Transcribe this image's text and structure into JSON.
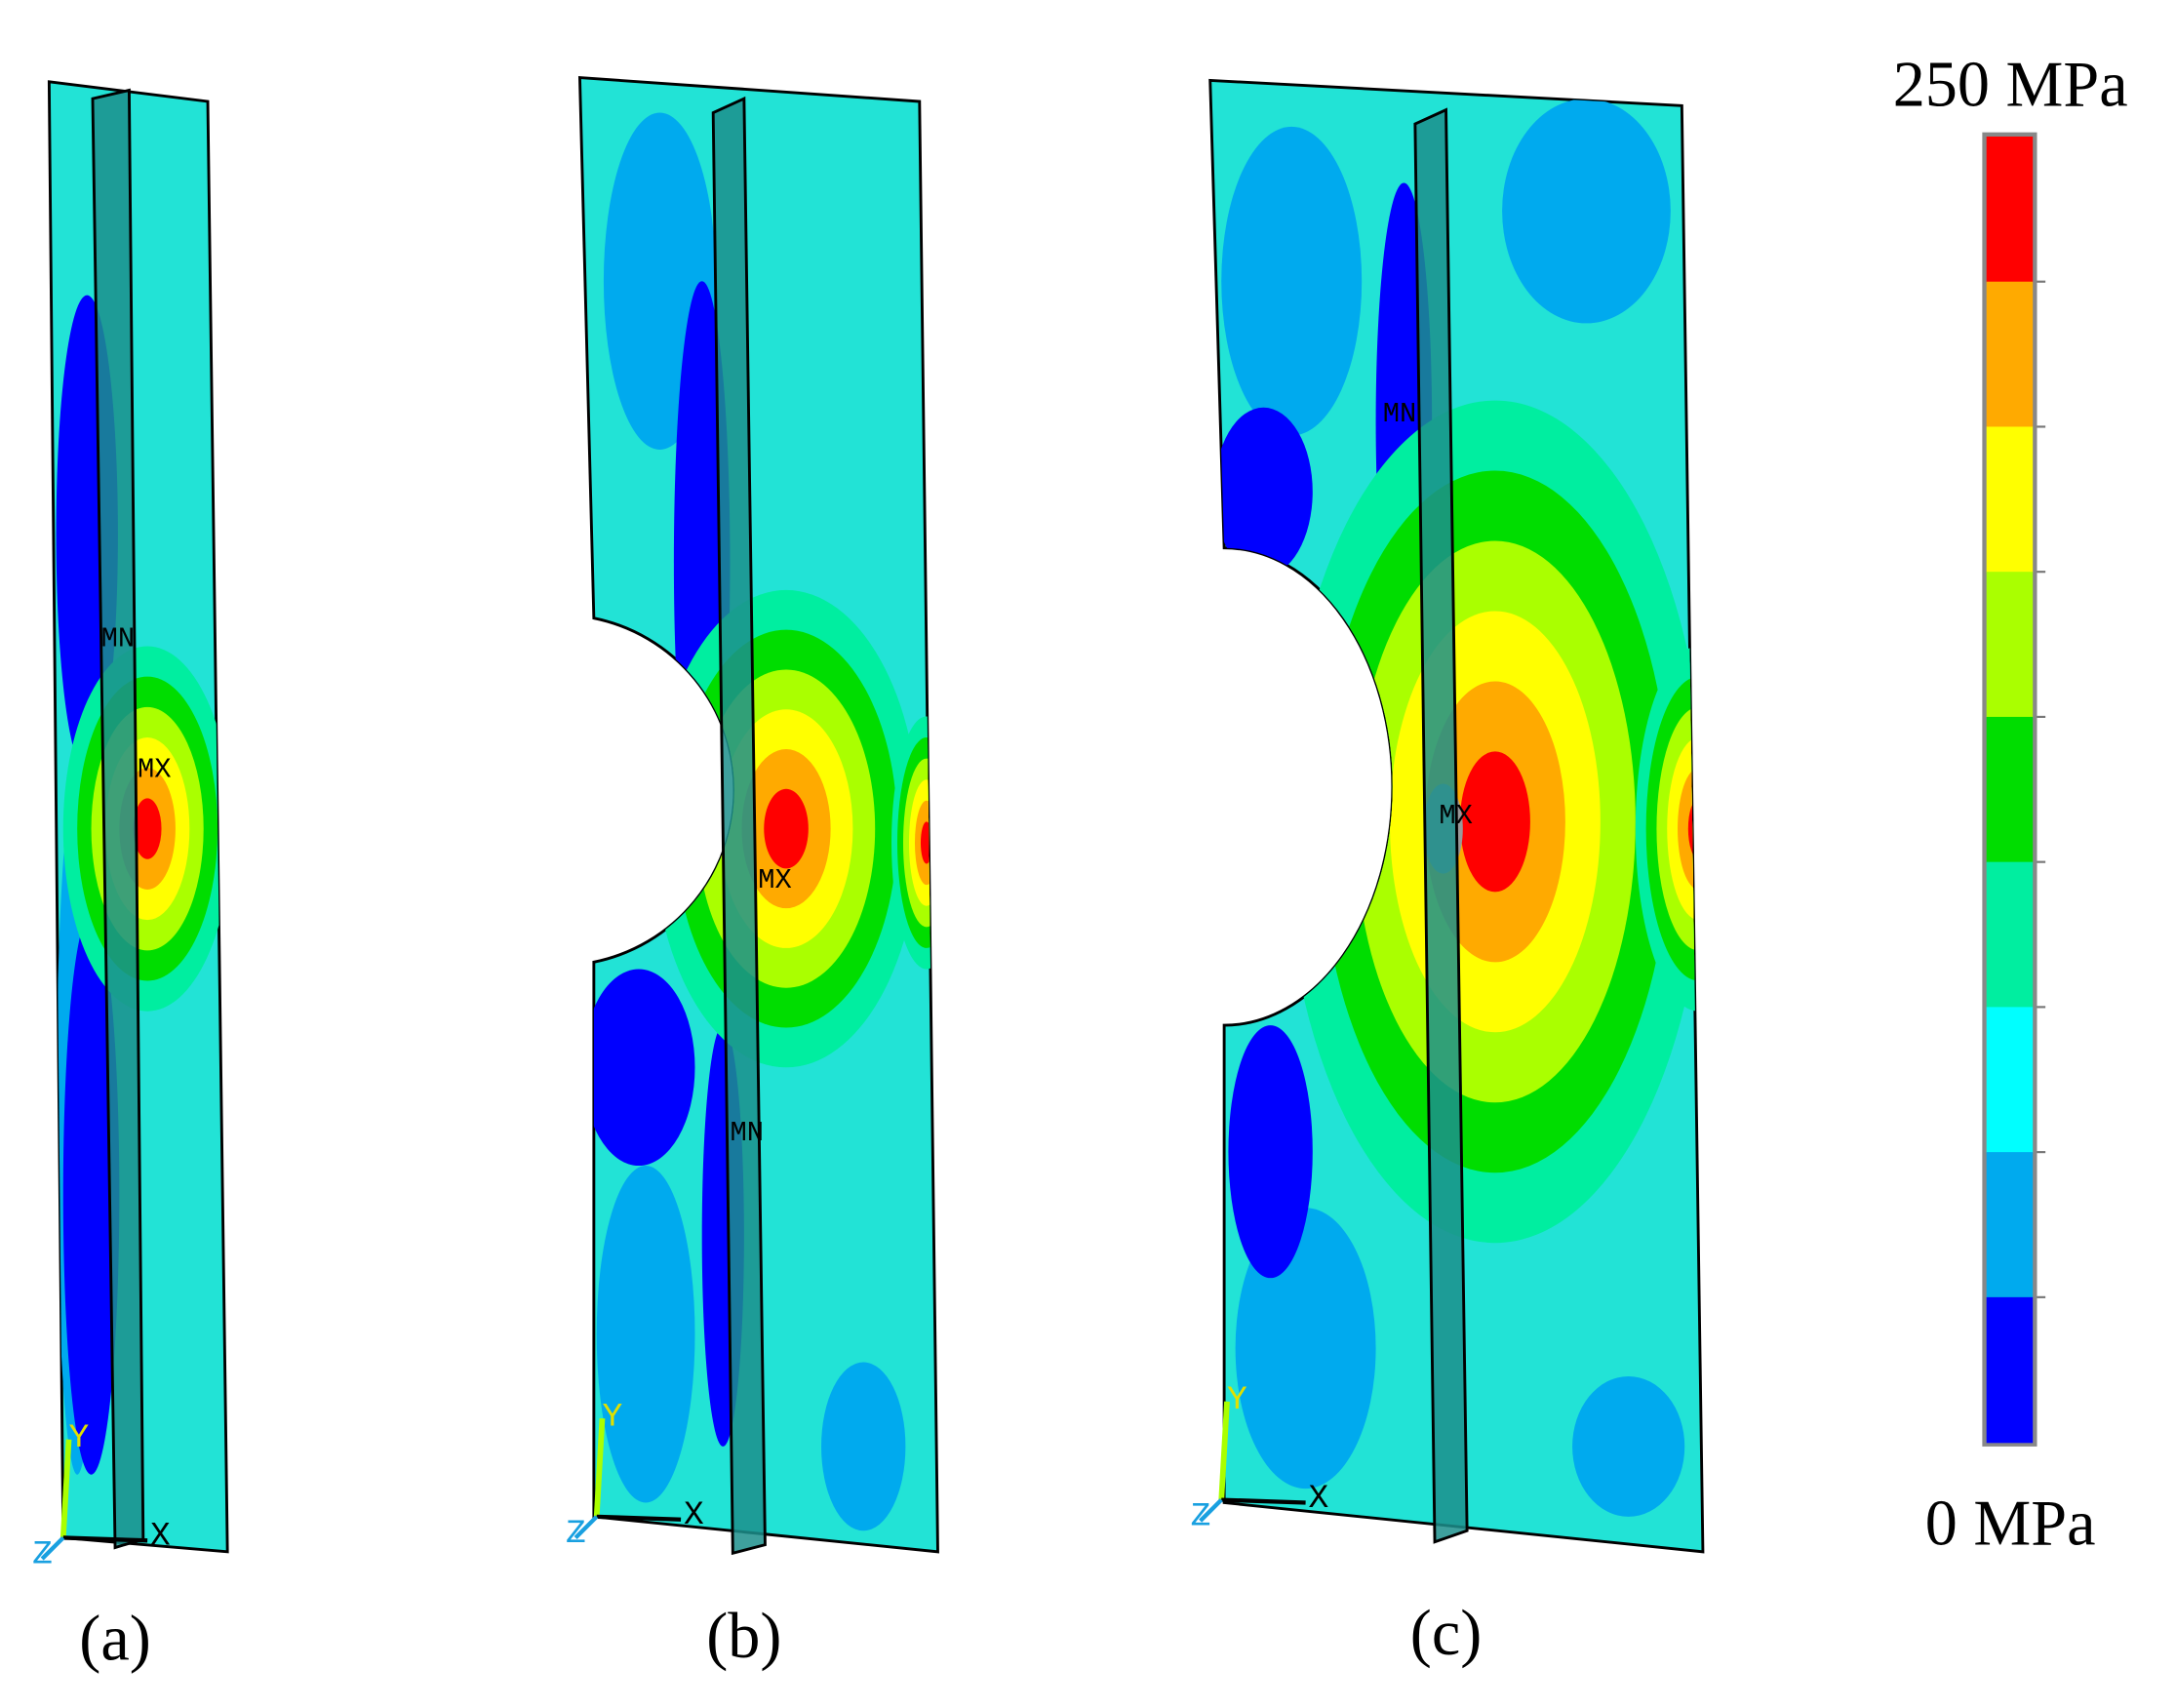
{
  "colorbar": {
    "max_label": "250 MPa",
    "min_label": "0 MPa",
    "colors": [
      "#ff0000",
      "#ffaa00",
      "#ffff00",
      "#aaff00",
      "#00dd00",
      "#00eea0",
      "#00ffff",
      "#00aaee",
      "#0000ff"
    ]
  },
  "panels": [
    {
      "label": "(a)",
      "min_marker": "MN",
      "max_marker": "MX",
      "triad": {
        "y": "Y",
        "x": "X",
        "z": "Z"
      }
    },
    {
      "label": "(b)",
      "min_marker": "MN",
      "max_marker": "MX",
      "triad": {
        "y": "Y",
        "x": "X",
        "z": "Z"
      }
    },
    {
      "label": "(c)",
      "min_marker": "MN",
      "max_marker": "MX",
      "triad": {
        "y": "Y",
        "x": "X",
        "z": "Z"
      }
    }
  ]
}
